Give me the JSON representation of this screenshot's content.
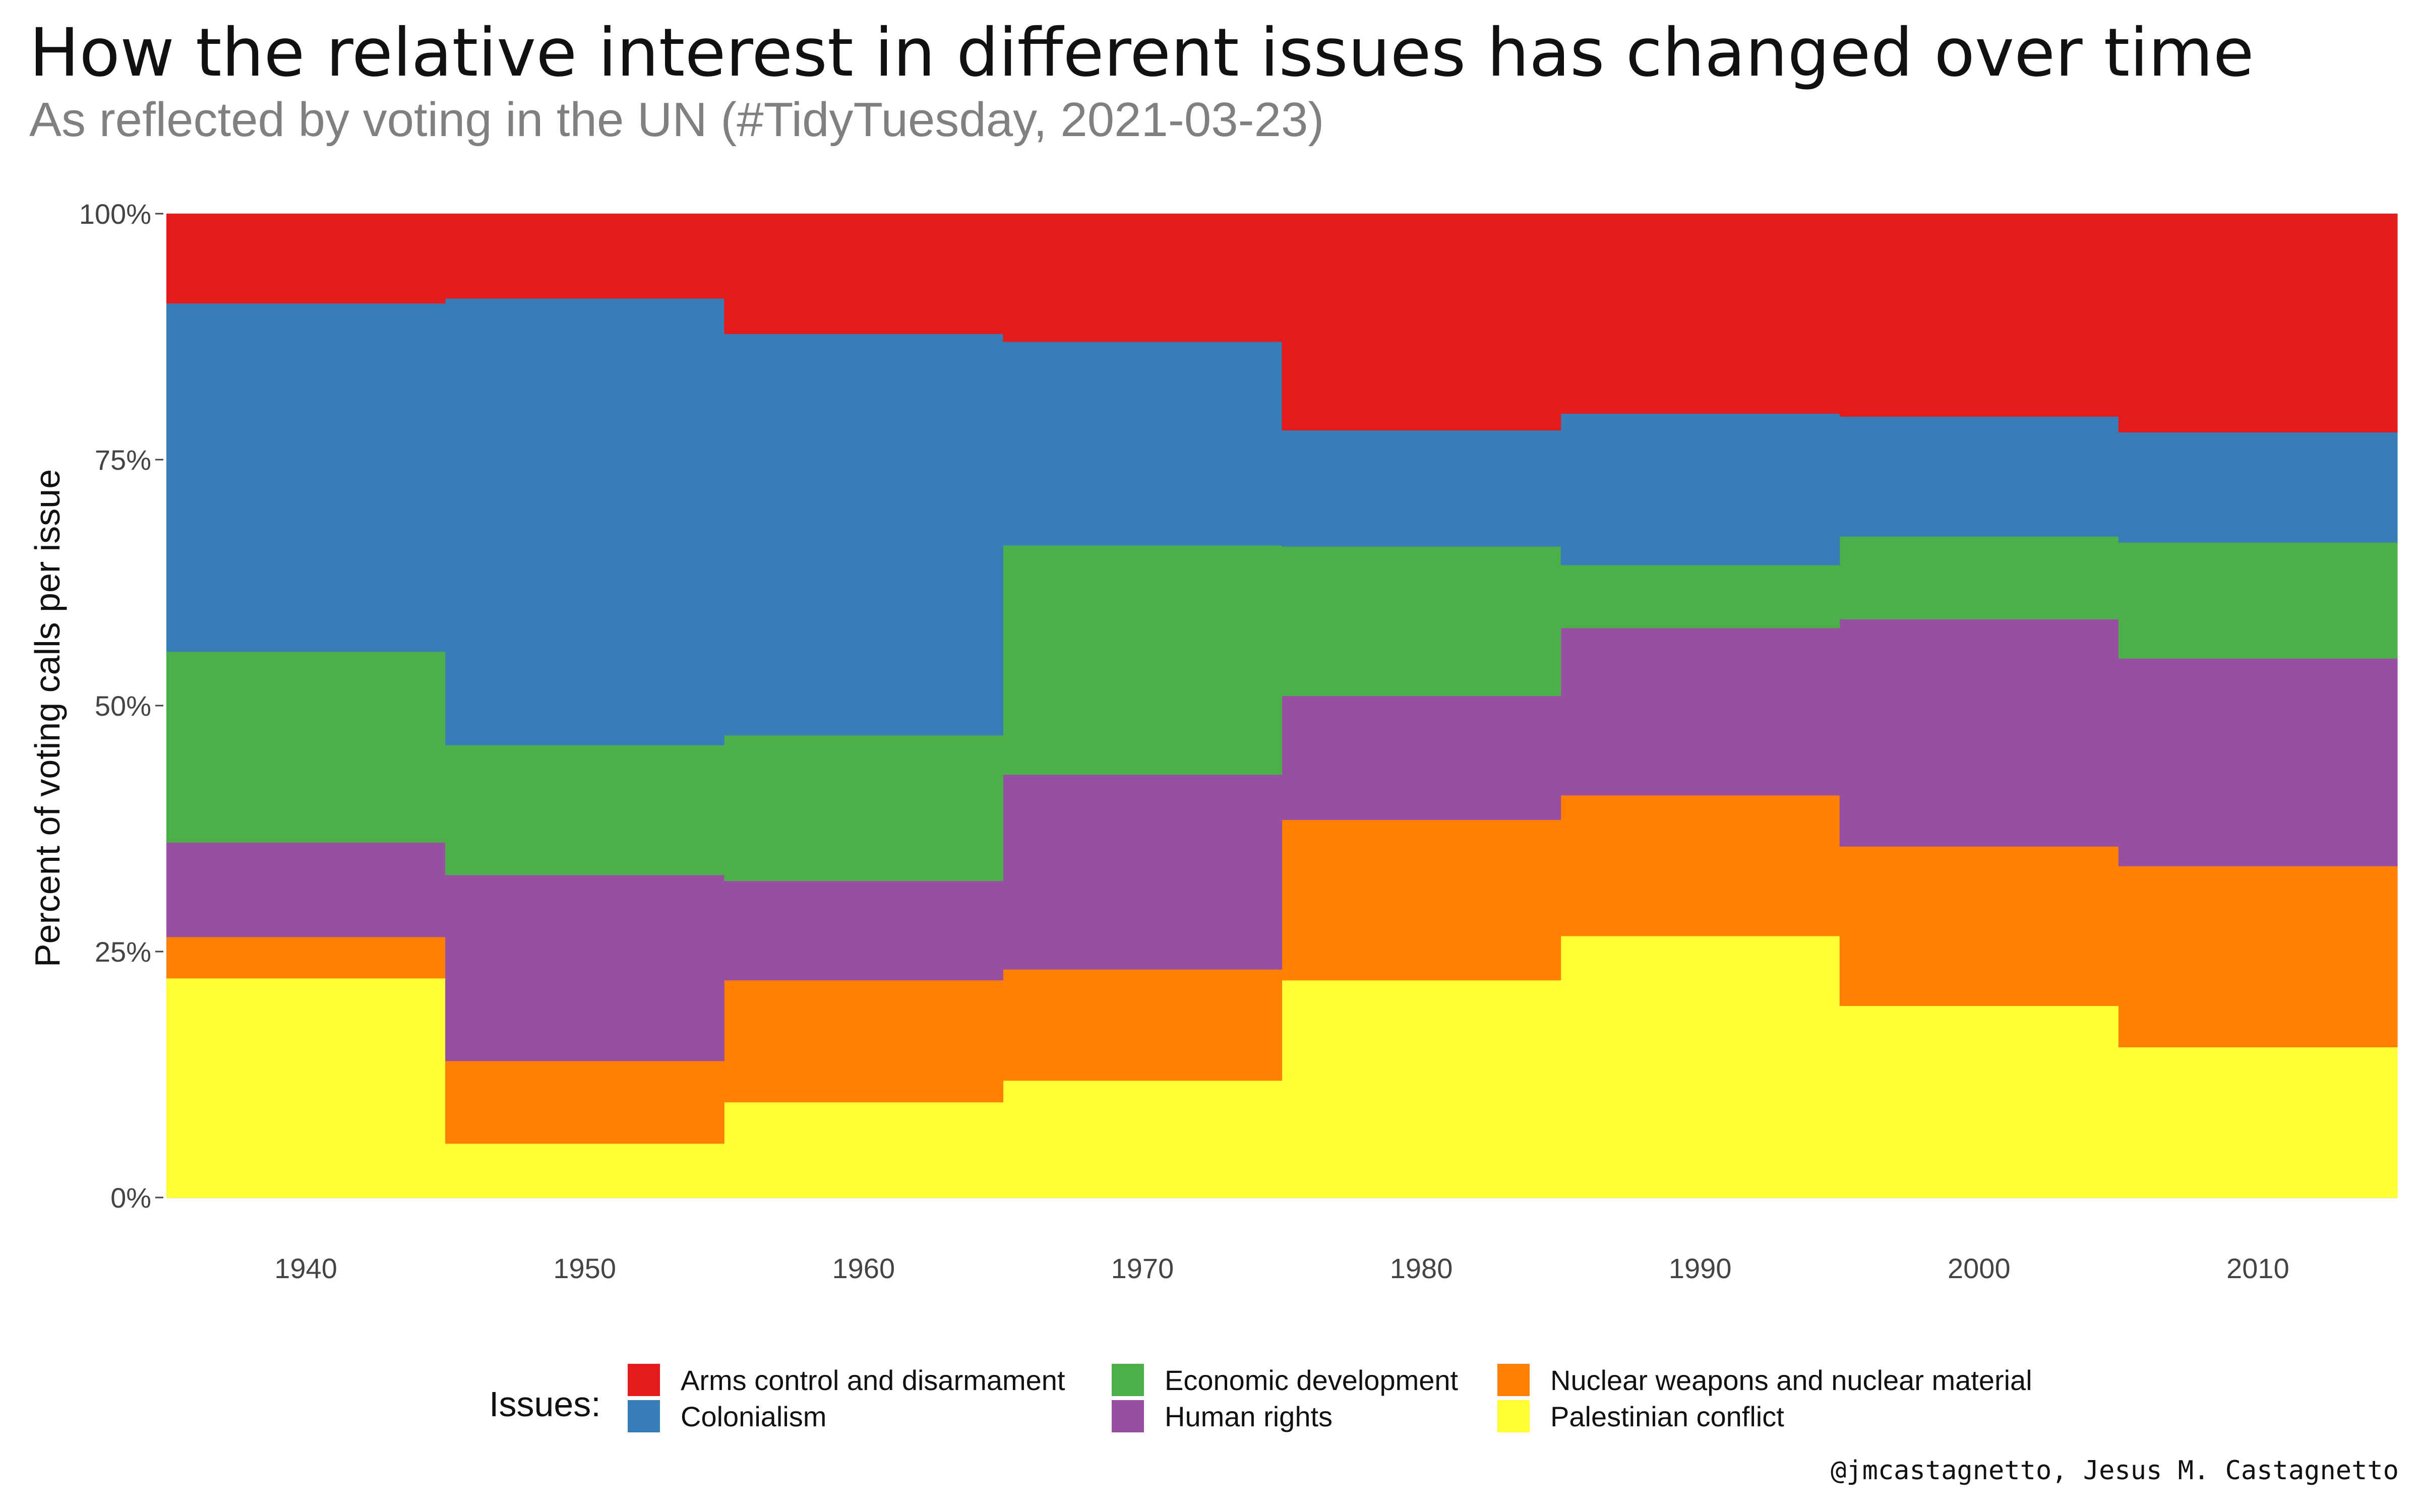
{
  "chart_data": {
    "type": "area",
    "title": "How the relative interest in different issues has changed over time",
    "subtitle": "As reflected by voting in the UN (#TidyTuesday, 2021-03-23)",
    "xlabel": "",
    "ylabel": "Percent of voting calls per issue",
    "x": [
      1940,
      1950,
      1960,
      1970,
      1980,
      1990,
      2000,
      2010
    ],
    "x_ticks": [
      "1940",
      "1950",
      "1960",
      "1970",
      "1980",
      "1990",
      "2000",
      "2010"
    ],
    "xlim": [
      1935,
      2015
    ],
    "ylim": [
      0,
      100
    ],
    "y_ticks": [
      "0%",
      "25%",
      "50%",
      "75%",
      "100%"
    ],
    "y_tick_values": [
      0,
      25,
      50,
      75,
      100
    ],
    "grid": true,
    "stacked": true,
    "step": true,
    "legend": {
      "title": "Issues:",
      "placement": "bottom"
    },
    "series": [
      {
        "name": "Palestinian conflict",
        "color": "#FFFF33",
        "values": [
          22.3,
          5.5,
          9.7,
          11.9,
          22.1,
          26.6,
          19.5,
          15.3
        ]
      },
      {
        "name": "Nuclear weapons and nuclear material",
        "color": "#FF7F00",
        "values": [
          4.2,
          8.4,
          12.4,
          11.3,
          16.3,
          14.3,
          16.2,
          18.4
        ]
      },
      {
        "name": "Human rights",
        "color": "#984EA3",
        "values": [
          9.6,
          18.9,
          10.1,
          19.8,
          12.6,
          17.0,
          23.1,
          21.1
        ]
      },
      {
        "name": "Economic development",
        "color": "#4DAF4A",
        "values": [
          19.4,
          13.2,
          14.8,
          23.3,
          15.2,
          6.4,
          8.4,
          11.8
        ]
      },
      {
        "name": "Colonialism",
        "color": "#377EB8",
        "values": [
          35.4,
          45.4,
          40.8,
          20.7,
          11.8,
          15.4,
          12.2,
          11.2
        ]
      },
      {
        "name": "Arms control and disarmament",
        "color": "#E41A1C",
        "values": [
          9.1,
          8.6,
          12.2,
          13.0,
          22.0,
          20.3,
          20.6,
          22.2
        ]
      }
    ],
    "legend_order": [
      "Arms control and disarmament",
      "Colonialism",
      "Economic development",
      "Human rights",
      "Nuclear weapons and nuclear material",
      "Palestinian conflict"
    ]
  },
  "caption": "@jmcastagnetto, Jesus M. Castagnetto"
}
